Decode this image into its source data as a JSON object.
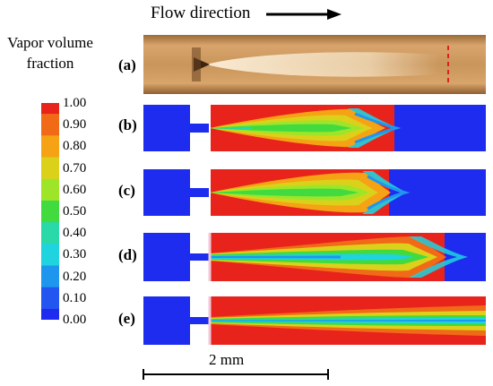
{
  "header": {
    "flow_label": "Flow direction"
  },
  "colorbar": {
    "title_line1": "Vapor volume",
    "title_line2": "fraction",
    "ticks": [
      "1.00",
      "0.90",
      "0.80",
      "0.70",
      "0.60",
      "0.50",
      "0.40",
      "0.30",
      "0.20",
      "0.10",
      "0.00"
    ],
    "colors": [
      "#e8231c",
      "#f06a17",
      "#f5a214",
      "#dcd11a",
      "#9ee52a",
      "#41db3f",
      "#29d9a8",
      "#1fd3df",
      "#1f96ee",
      "#2356f1",
      "#1f2bef"
    ]
  },
  "panels": [
    {
      "label": "(a)",
      "kind": "photo"
    },
    {
      "label": "(b)",
      "kind": "sim"
    },
    {
      "label": "(c)",
      "kind": "sim"
    },
    {
      "label": "(d)",
      "kind": "sim"
    },
    {
      "label": "(e)",
      "kind": "sim"
    }
  ],
  "scale": {
    "label": "2 mm"
  },
  "colors": {
    "blue": "#1e2cf0",
    "red": "#e8231c",
    "photo": "#c8955b"
  }
}
